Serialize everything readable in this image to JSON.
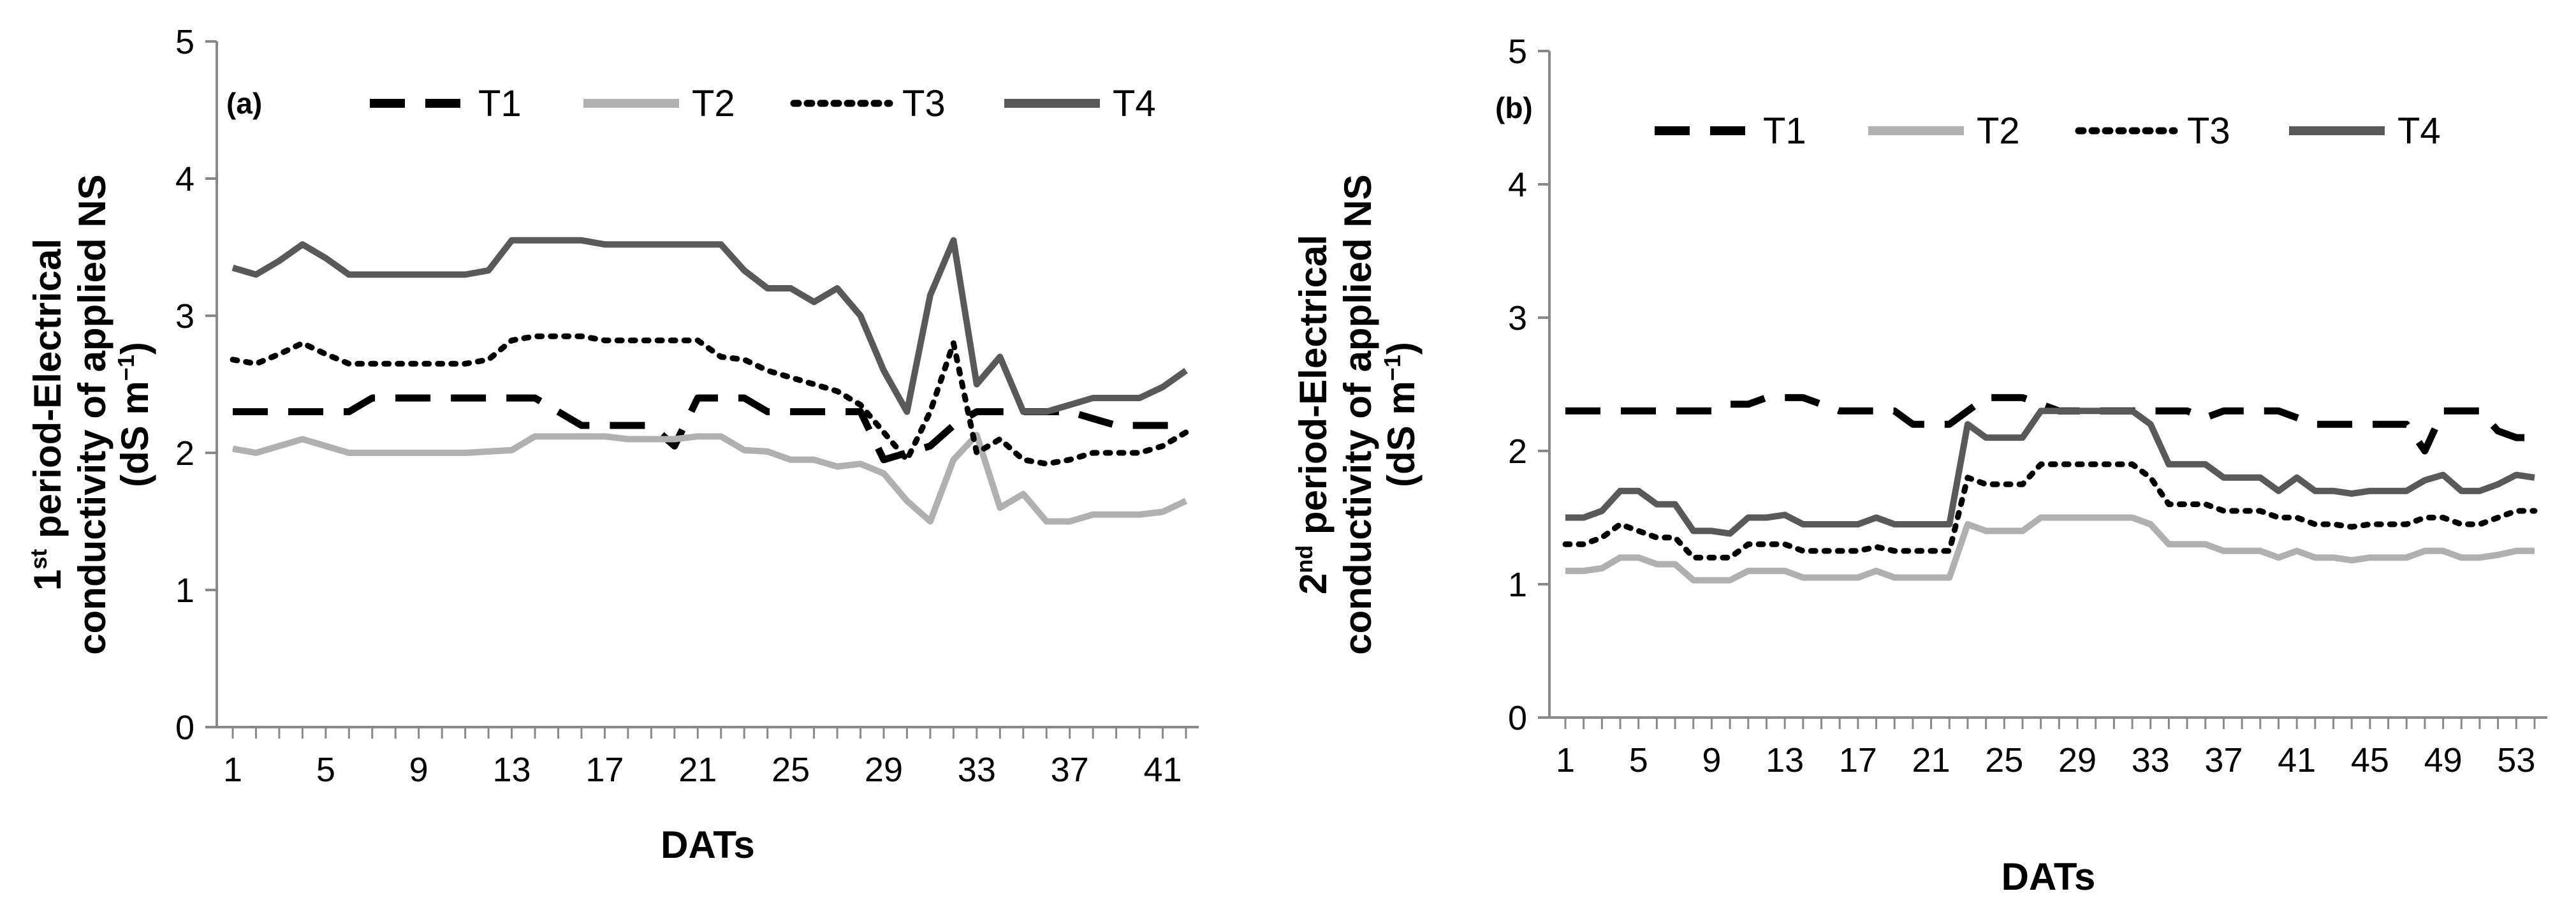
{
  "chart_data": [
    {
      "type": "line",
      "panel_label": "(a)",
      "ylabel_prefix": "1",
      "ylabel_sup": "st",
      "ylabel_line1": " period-Electrical",
      "ylabel_line2": "conductivity of applied NS",
      "ylabel_line3a": "(dS m",
      "ylabel_line3sup": "−1",
      "ylabel_line3b": ")",
      "xlabel": "DATs",
      "ylim": [
        0,
        5
      ],
      "yticks": [
        0,
        1,
        2,
        3,
        4,
        5
      ],
      "xticks": [
        1,
        5,
        9,
        13,
        17,
        21,
        25,
        29,
        33,
        37,
        41
      ],
      "x_start": 1,
      "x_end": 42,
      "legend_position": "top",
      "series": [
        {
          "name": "T1",
          "color": "#000000",
          "style": "dashed",
          "values": [
            2.3,
            2.3,
            2.3,
            2.3,
            2.3,
            2.3,
            2.4,
            2.4,
            2.4,
            2.4,
            2.4,
            2.4,
            2.4,
            2.4,
            2.3,
            2.2,
            2.2,
            2.2,
            2.2,
            2.05,
            2.4,
            2.4,
            2.4,
            2.3,
            2.3,
            2.3,
            2.3,
            2.3,
            1.95,
            2.0,
            2.05,
            2.2,
            2.3,
            2.3,
            2.3,
            2.3,
            2.3,
            2.25,
            2.2,
            2.2,
            2.2,
            2.2
          ]
        },
        {
          "name": "T2",
          "color": "#b0b0b0",
          "style": "solid",
          "values": [
            2.03,
            2.0,
            2.05,
            2.1,
            2.05,
            2.0,
            2.0,
            2.0,
            2.0,
            2.0,
            2.0,
            2.01,
            2.02,
            2.12,
            2.12,
            2.12,
            2.12,
            2.1,
            2.1,
            2.1,
            2.12,
            2.12,
            2.02,
            2.01,
            1.95,
            1.95,
            1.9,
            1.92,
            1.85,
            1.65,
            1.5,
            1.95,
            2.13,
            1.6,
            1.7,
            1.5,
            1.5,
            1.55,
            1.55,
            1.55,
            1.57,
            1.65
          ]
        },
        {
          "name": "T3",
          "color": "#000000",
          "style": "dotted",
          "values": [
            2.68,
            2.65,
            2.72,
            2.8,
            2.72,
            2.65,
            2.65,
            2.65,
            2.65,
            2.65,
            2.65,
            2.68,
            2.82,
            2.85,
            2.85,
            2.85,
            2.82,
            2.82,
            2.82,
            2.82,
            2.82,
            2.7,
            2.68,
            2.6,
            2.55,
            2.5,
            2.45,
            2.35,
            2.15,
            1.95,
            2.3,
            2.8,
            2.0,
            2.1,
            1.95,
            1.92,
            1.95,
            2.0,
            2.0,
            2.0,
            2.05,
            2.15
          ]
        },
        {
          "name": "T4",
          "color": "#595959",
          "style": "solid",
          "values": [
            3.35,
            3.3,
            3.4,
            3.52,
            3.42,
            3.3,
            3.3,
            3.3,
            3.3,
            3.3,
            3.3,
            3.33,
            3.55,
            3.55,
            3.55,
            3.55,
            3.52,
            3.52,
            3.52,
            3.52,
            3.52,
            3.52,
            3.33,
            3.2,
            3.2,
            3.1,
            3.2,
            3.0,
            2.6,
            2.3,
            3.15,
            3.55,
            2.5,
            2.7,
            2.3,
            2.3,
            2.35,
            2.4,
            2.4,
            2.4,
            2.48,
            2.6
          ]
        }
      ]
    },
    {
      "type": "line",
      "panel_label": "(b)",
      "ylabel_prefix": "2",
      "ylabel_sup": "nd",
      "ylabel_line1": " period-Electrical",
      "ylabel_line2": "conductivity of applied NS",
      "ylabel_line3a": "(dS m",
      "ylabel_line3sup": "−1",
      "ylabel_line3b": ")",
      "xlabel": "DATs",
      "ylim": [
        0,
        5
      ],
      "yticks": [
        0,
        1,
        2,
        3,
        4,
        5
      ],
      "xticks": [
        1,
        5,
        9,
        13,
        17,
        21,
        25,
        29,
        33,
        37,
        41,
        45,
        49,
        53
      ],
      "x_start": 1,
      "x_end": 54,
      "legend_position": "top",
      "series": [
        {
          "name": "T1",
          "color": "#000000",
          "style": "dashed",
          "values": [
            2.3,
            2.3,
            2.3,
            2.3,
            2.3,
            2.3,
            2.3,
            2.3,
            2.3,
            2.35,
            2.35,
            2.4,
            2.4,
            2.4,
            2.35,
            2.3,
            2.3,
            2.3,
            2.3,
            2.2,
            2.2,
            2.2,
            2.3,
            2.4,
            2.4,
            2.4,
            2.35,
            2.3,
            2.3,
            2.3,
            2.3,
            2.3,
            2.3,
            2.3,
            2.3,
            2.25,
            2.3,
            2.3,
            2.3,
            2.3,
            2.25,
            2.2,
            2.2,
            2.2,
            2.2,
            2.2,
            2.2,
            2.0,
            2.3,
            2.3,
            2.3,
            2.15,
            2.1,
            2.1
          ]
        },
        {
          "name": "T2",
          "color": "#b0b0b0",
          "style": "solid",
          "values": [
            1.1,
            1.1,
            1.12,
            1.2,
            1.2,
            1.15,
            1.15,
            1.03,
            1.03,
            1.03,
            1.1,
            1.1,
            1.1,
            1.05,
            1.05,
            1.05,
            1.05,
            1.1,
            1.05,
            1.05,
            1.05,
            1.05,
            1.45,
            1.4,
            1.4,
            1.4,
            1.5,
            1.5,
            1.5,
            1.5,
            1.5,
            1.5,
            1.45,
            1.3,
            1.3,
            1.3,
            1.25,
            1.25,
            1.25,
            1.2,
            1.25,
            1.2,
            1.2,
            1.18,
            1.2,
            1.2,
            1.2,
            1.25,
            1.25,
            1.2,
            1.2,
            1.22,
            1.25,
            1.25
          ]
        },
        {
          "name": "T3",
          "color": "#000000",
          "style": "dotted",
          "values": [
            1.3,
            1.3,
            1.35,
            1.45,
            1.4,
            1.35,
            1.35,
            1.2,
            1.2,
            1.2,
            1.3,
            1.3,
            1.3,
            1.25,
            1.25,
            1.25,
            1.25,
            1.28,
            1.25,
            1.25,
            1.25,
            1.25,
            1.8,
            1.75,
            1.75,
            1.75,
            1.9,
            1.9,
            1.9,
            1.9,
            1.9,
            1.9,
            1.8,
            1.6,
            1.6,
            1.6,
            1.55,
            1.55,
            1.55,
            1.5,
            1.5,
            1.45,
            1.45,
            1.43,
            1.45,
            1.45,
            1.45,
            1.5,
            1.5,
            1.45,
            1.45,
            1.5,
            1.55,
            1.55
          ]
        },
        {
          "name": "T4",
          "color": "#595959",
          "style": "solid",
          "values": [
            1.5,
            1.5,
            1.55,
            1.7,
            1.7,
            1.6,
            1.6,
            1.4,
            1.4,
            1.38,
            1.5,
            1.5,
            1.52,
            1.45,
            1.45,
            1.45,
            1.45,
            1.5,
            1.45,
            1.45,
            1.45,
            1.45,
            2.2,
            2.1,
            2.1,
            2.1,
            2.3,
            2.3,
            2.3,
            2.3,
            2.3,
            2.3,
            2.2,
            1.9,
            1.9,
            1.9,
            1.8,
            1.8,
            1.8,
            1.7,
            1.8,
            1.7,
            1.7,
            1.68,
            1.7,
            1.7,
            1.7,
            1.78,
            1.82,
            1.7,
            1.7,
            1.75,
            1.82,
            1.8
          ]
        }
      ]
    }
  ]
}
